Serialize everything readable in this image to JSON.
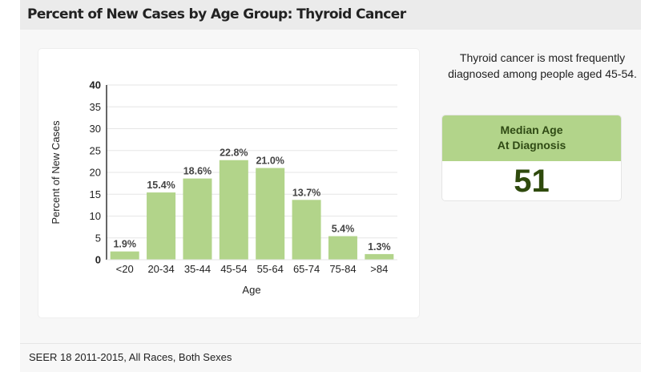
{
  "header": {
    "title": "Percent of New Cases by Age Group: Thyroid Cancer"
  },
  "summary": {
    "text": "Thyroid cancer is most frequently diagnosed among people aged 45-54."
  },
  "median": {
    "label_line1": "Median Age",
    "label_line2": "At Diagnosis",
    "value": "51"
  },
  "footer": {
    "text": "SEER 18 2011-2015, All Races, Both Sexes"
  },
  "colors": {
    "bar": "#b2d48a",
    "median_header": "#b2d48a",
    "median_value": "#2f4a0d"
  },
  "chart_data": {
    "type": "bar",
    "categories": [
      "<20",
      "20-34",
      "35-44",
      "45-54",
      "55-64",
      "65-74",
      "75-84",
      ">84"
    ],
    "values": [
      1.9,
      15.4,
      18.6,
      22.8,
      21.0,
      13.7,
      5.4,
      1.3
    ],
    "data_labels": [
      "1.9%",
      "15.4%",
      "18.6%",
      "22.8%",
      "21.0%",
      "13.7%",
      "5.4%",
      "1.3%"
    ],
    "xlabel": "Age",
    "ylabel": "Percent of New Cases",
    "ylim": [
      0,
      40
    ],
    "yticks": [
      0,
      5,
      10,
      15,
      20,
      25,
      30,
      35,
      40
    ],
    "grid": true
  }
}
